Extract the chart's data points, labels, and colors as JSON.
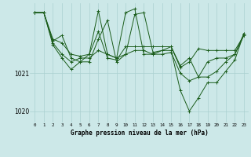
{
  "title": "Graphe pression niveau de la mer (hPa)",
  "bg_color": "#cce8e8",
  "grid_color": "#aad0d0",
  "line_color": "#1a5c1a",
  "x_min": 0,
  "x_max": 23,
  "y_min": 1019.7,
  "y_max": 1022.85,
  "yticks": [
    1020,
    1021
  ],
  "xticks": [
    0,
    1,
    2,
    3,
    4,
    5,
    6,
    7,
    8,
    9,
    10,
    11,
    12,
    13,
    14,
    15,
    16,
    17,
    18,
    19,
    20,
    21,
    22,
    23
  ],
  "series": [
    [
      1022.6,
      1022.6,
      1021.9,
      1021.8,
      1021.5,
      1021.45,
      1021.5,
      1022.1,
      1021.4,
      1021.35,
      1021.7,
      1021.7,
      1021.7,
      1021.7,
      1021.7,
      1021.7,
      1021.15,
      1021.3,
      1021.65,
      1021.6,
      1021.6,
      1021.6,
      1021.6,
      1022.0
    ],
    [
      1022.6,
      1022.6,
      1021.75,
      1021.4,
      1021.1,
      1021.3,
      1021.3,
      1021.9,
      1022.4,
      1021.3,
      1021.5,
      1022.55,
      1022.6,
      1021.55,
      1021.6,
      1021.6,
      1020.55,
      1020.0,
      1020.35,
      1020.75,
      1020.75,
      1021.05,
      1021.35,
      1022.05
    ],
    [
      1022.6,
      1022.6,
      1021.8,
      1021.5,
      1021.3,
      1021.4,
      1021.4,
      1021.6,
      1021.5,
      1021.4,
      1021.5,
      1021.6,
      1021.6,
      1021.5,
      1021.5,
      1021.55,
      1021.0,
      1020.8,
      1020.9,
      1021.3,
      1021.4,
      1021.4,
      1021.5,
      1022.0
    ],
    [
      1022.6,
      1022.6,
      1021.85,
      1022.0,
      1021.4,
      1021.3,
      1021.5,
      1022.65,
      1021.5,
      1021.4,
      1022.6,
      1022.7,
      1021.5,
      1021.5,
      1021.6,
      1021.7,
      1021.2,
      1021.4,
      1020.9,
      1020.9,
      1021.05,
      1021.3,
      1021.5,
      1022.05
    ]
  ]
}
